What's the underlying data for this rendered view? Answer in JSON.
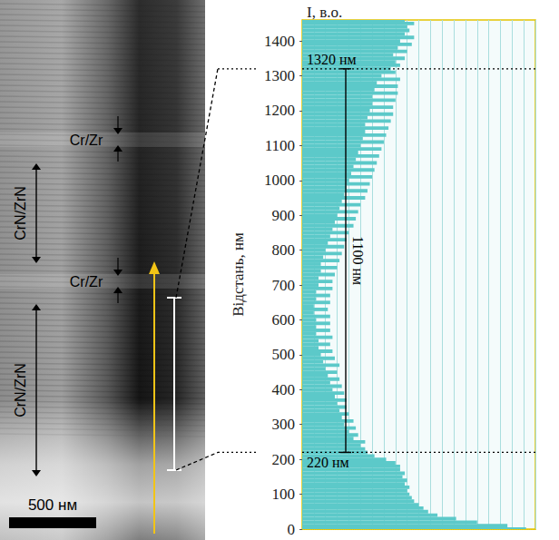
{
  "chart_data": {
    "type": "bar",
    "orientation": "horizontal",
    "x_label": "Відстань, нм",
    "y_label": "I, в.о.",
    "x": [
      0,
      10,
      20,
      30,
      40,
      50,
      60,
      70,
      80,
      90,
      100,
      110,
      120,
      130,
      140,
      150,
      160,
      170,
      180,
      190,
      200,
      210,
      220,
      230,
      240,
      250,
      260,
      270,
      280,
      290,
      300,
      310,
      320,
      330,
      340,
      350,
      360,
      370,
      380,
      390,
      400,
      410,
      420,
      430,
      440,
      450,
      460,
      470,
      480,
      490,
      500,
      510,
      520,
      530,
      540,
      550,
      560,
      570,
      580,
      590,
      600,
      610,
      620,
      630,
      640,
      650,
      660,
      670,
      680,
      690,
      700,
      710,
      720,
      730,
      740,
      750,
      760,
      770,
      780,
      790,
      800,
      810,
      820,
      830,
      840,
      850,
      860,
      870,
      880,
      890,
      900,
      910,
      920,
      930,
      940,
      950,
      960,
      970,
      980,
      990,
      1000,
      1010,
      1020,
      1030,
      1040,
      1050,
      1060,
      1070,
      1080,
      1090,
      1100,
      1110,
      1120,
      1130,
      1140,
      1150,
      1160,
      1170,
      1180,
      1190,
      1200,
      1210,
      1220,
      1230,
      1240,
      1250,
      1260,
      1270,
      1280,
      1290,
      1300,
      1310,
      1320,
      1330,
      1340,
      1350,
      1360,
      1370,
      1380,
      1390,
      1400,
      1410,
      1420,
      1430,
      1440,
      1450,
      1460
    ],
    "values": [
      96,
      88,
      75,
      66,
      58,
      54,
      52,
      50,
      48,
      47,
      46,
      45,
      46,
      44,
      45,
      43,
      44,
      42,
      42,
      40,
      36,
      31,
      28,
      27,
      25,
      27,
      22,
      24,
      20,
      23,
      18,
      22,
      17,
      20,
      16,
      19,
      15,
      19,
      14,
      18,
      13,
      17,
      12,
      16,
      11,
      15,
      10,
      16,
      9,
      14,
      8,
      13,
      7,
      12,
      7,
      13,
      6,
      12,
      6,
      12,
      6,
      12,
      5,
      11,
      5,
      12,
      6,
      12,
      6,
      13,
      7,
      13,
      7,
      14,
      8,
      15,
      8,
      16,
      9,
      17,
      10,
      18,
      11,
      19,
      12,
      20,
      13,
      22,
      14,
      23,
      15,
      24,
      16,
      25,
      17,
      27,
      18,
      28,
      19,
      29,
      20,
      30,
      21,
      31,
      22,
      32,
      23,
      33,
      24,
      34,
      25,
      35,
      26,
      36,
      27,
      37,
      27,
      38,
      28,
      39,
      29,
      39,
      30,
      40,
      30,
      41,
      31,
      41,
      32,
      42,
      34,
      40,
      38,
      42,
      40,
      44,
      39,
      45,
      41,
      47,
      42,
      48,
      44,
      46,
      45,
      48,
      44
    ],
    "color": "#5cc9c9",
    "xlim": [
      0,
      1460
    ],
    "xticks": [
      0,
      100,
      200,
      300,
      400,
      500,
      600,
      700,
      800,
      900,
      1000,
      1100,
      1200,
      1300,
      1400
    ],
    "ylim": [
      0,
      100
    ],
    "yticks": [
      0,
      5,
      10,
      15,
      20,
      25,
      30,
      35,
      40,
      45,
      50,
      55,
      60,
      65,
      70,
      75,
      80,
      85,
      90,
      95,
      100
    ],
    "grid": true,
    "tick_labels": "x",
    "annotations": [
      {
        "text": "1320 нм",
        "at": 1320
      },
      {
        "text": "220 нм",
        "at": 220
      },
      {
        "text": "1100 нм",
        "from": 220,
        "to": 1320
      }
    ]
  },
  "image": {
    "labels": [
      "Cr/Zr",
      "CrN/ZrN",
      "Cr/Zr",
      "CrN/ZrN"
    ],
    "scale_bar": "500 нм"
  }
}
